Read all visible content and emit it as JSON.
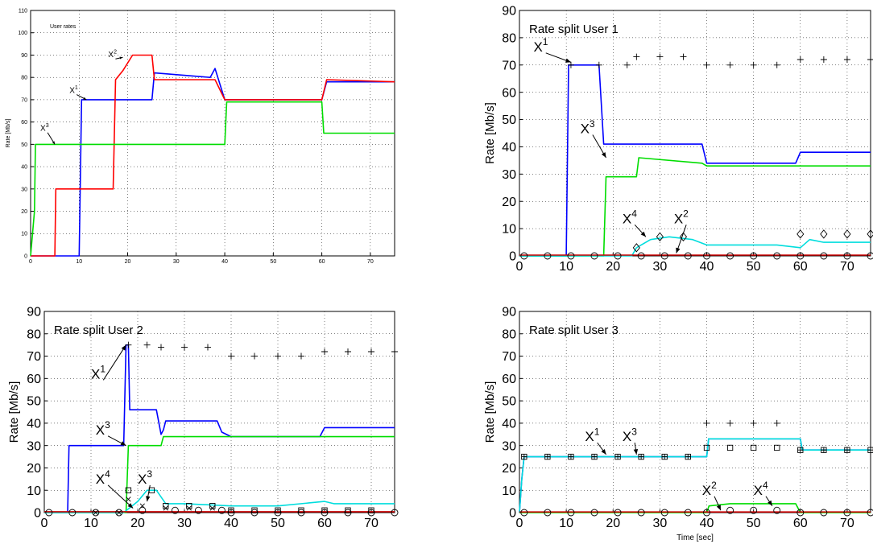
{
  "chart_data": [
    {
      "type": "line",
      "title": "User rates",
      "xlabel": "",
      "ylabel": "Rate [Mb/s]",
      "xlim": [
        0,
        75
      ],
      "ylim": [
        0,
        110
      ],
      "xticks": [
        0,
        10,
        20,
        30,
        40,
        50,
        60,
        70
      ],
      "yticks": [
        0,
        10,
        20,
        30,
        40,
        50,
        60,
        70,
        80,
        90,
        100,
        110
      ],
      "grid": true,
      "series": [
        {
          "name": "X1",
          "color": "#0000ff",
          "x": [
            0,
            10,
            10.5,
            25,
            25.5,
            37,
            38,
            40,
            60,
            61,
            75
          ],
          "y": [
            0,
            0,
            70,
            70,
            82,
            80,
            84,
            70,
            70,
            78,
            78
          ]
        },
        {
          "name": "X2",
          "color": "#ff0000",
          "x": [
            0,
            5,
            5.2,
            17,
            17.5,
            19,
            21,
            25,
            25.5,
            38,
            40,
            60,
            61,
            75
          ],
          "y": [
            0,
            0,
            30,
            30,
            79,
            83,
            90,
            90,
            79,
            79,
            70,
            70,
            79,
            78
          ]
        },
        {
          "name": "X3",
          "color": "#00dd00",
          "x": [
            0,
            0.8,
            1,
            40,
            40.4,
            60,
            60.4,
            75
          ],
          "y": [
            0,
            20,
            50,
            50,
            69,
            69,
            55,
            55
          ]
        }
      ],
      "annotations": [
        {
          "base": "X",
          "sup": "1",
          "x": 8,
          "y": 73,
          "tx": 11.5,
          "ty": 70
        },
        {
          "base": "X",
          "sup": "2",
          "x": 16,
          "y": 89,
          "tx": 19,
          "ty": 89
        },
        {
          "base": "X",
          "sup": "3",
          "x": 2,
          "y": 56,
          "tx": 5,
          "ty": 50
        }
      ]
    },
    {
      "type": "line",
      "title": "Rate split User 1",
      "xlabel": "",
      "ylabel": "Rate [Mb/s]",
      "xlim": [
        0,
        75
      ],
      "ylim": [
        0,
        90
      ],
      "xticks": [
        0,
        10,
        20,
        30,
        40,
        50,
        60,
        70
      ],
      "yticks": [
        0,
        10,
        20,
        30,
        40,
        50,
        60,
        70,
        80,
        90
      ],
      "grid": true,
      "series": [
        {
          "name": "X1",
          "color": "#0000ff",
          "x": [
            0,
            10,
            10.5,
            17,
            18,
            25,
            25.5,
            39,
            40,
            59,
            60,
            75
          ],
          "y": [
            0,
            0,
            70,
            70,
            41,
            41,
            41,
            41,
            34,
            34,
            38,
            38
          ]
        },
        {
          "name": "X3",
          "color": "#00dd00",
          "x": [
            0,
            18,
            18.5,
            25,
            25.5,
            39,
            40,
            59,
            60,
            75
          ],
          "y": [
            0,
            0,
            29,
            29,
            36,
            34,
            33,
            33,
            33,
            33
          ]
        },
        {
          "name": "X4",
          "color": "#00dddd",
          "x": [
            0,
            24,
            25,
            28,
            32,
            37,
            40,
            45,
            50,
            55,
            60,
            62,
            65,
            70,
            75
          ],
          "y": [
            0,
            0,
            3,
            6,
            7,
            6,
            4,
            4,
            4,
            4,
            3,
            6,
            5,
            5,
            5
          ]
        },
        {
          "name": "X2",
          "color": "#cc0000",
          "x": [
            0,
            75
          ],
          "y": [
            0.3,
            0.3
          ]
        }
      ],
      "markers": {
        "plus": {
          "x": [
            11,
            17,
            23,
            25,
            30,
            35,
            40,
            45,
            50,
            55,
            60,
            65,
            70,
            75
          ],
          "y": [
            70,
            70,
            70,
            73,
            73,
            73,
            70,
            70,
            70,
            70,
            72,
            72,
            72,
            72
          ]
        },
        "diamond": {
          "x": [
            25,
            30,
            35,
            60,
            65,
            70,
            75
          ],
          "y": [
            3,
            7,
            7,
            8,
            8,
            8,
            8
          ]
        },
        "circle": {
          "x": [
            1,
            6,
            11,
            16,
            21,
            26,
            31,
            36,
            40,
            45,
            50,
            55,
            60,
            65,
            70,
            75
          ],
          "y": [
            0,
            0,
            0,
            0,
            0,
            0,
            0,
            0,
            0,
            0,
            0,
            0,
            0,
            0,
            0,
            0
          ]
        }
      },
      "annotations": [
        {
          "base": "X",
          "sup": "1",
          "x": 3,
          "y": 75,
          "tx": 11,
          "ty": 71
        },
        {
          "base": "X",
          "sup": "3",
          "x": 13,
          "y": 45,
          "tx": 18.5,
          "ty": 36
        },
        {
          "base": "X",
          "sup": "4",
          "x": 22,
          "y": 12,
          "tx": 27,
          "ty": 7
        },
        {
          "base": "X",
          "sup": "2",
          "x": 33,
          "y": 12,
          "tx": 33.5,
          "ty": 1
        }
      ]
    },
    {
      "type": "line",
      "title": "Rate split User 2",
      "xlabel": "",
      "ylabel": "Rate [Mb/s]",
      "xlim": [
        0,
        75
      ],
      "ylim": [
        0,
        90
      ],
      "xticks": [
        0,
        10,
        20,
        30,
        40,
        50,
        60,
        70
      ],
      "yticks": [
        0,
        10,
        20,
        30,
        40,
        50,
        60,
        70,
        80,
        90
      ],
      "grid": true,
      "series": [
        {
          "name": "X1",
          "color": "#0000ff",
          "x": [
            0,
            5,
            5.3,
            17,
            17.5,
            18,
            18.3,
            24,
            25,
            25.5,
            26,
            37,
            38,
            40,
            59,
            60,
            75
          ],
          "y": [
            0,
            0,
            30,
            30,
            75,
            75,
            46,
            46,
            35,
            37,
            41,
            41,
            36,
            34,
            34,
            38,
            38
          ]
        },
        {
          "name": "X3",
          "color": "#00dd00",
          "x": [
            0,
            17.5,
            18,
            25,
            25.5,
            39,
            40,
            59,
            60,
            75
          ],
          "y": [
            0,
            0,
            30,
            30,
            34,
            34,
            34,
            34,
            34,
            34
          ]
        },
        {
          "name": "X4",
          "color": "#00dddd",
          "x": [
            0,
            17,
            20,
            22,
            24,
            26,
            30,
            40,
            50,
            60,
            62,
            75
          ],
          "y": [
            0,
            0,
            5,
            10,
            10,
            4,
            4,
            3,
            3,
            5,
            4,
            4
          ]
        },
        {
          "name": "X2",
          "color": "#cc0000",
          "x": [
            0,
            75
          ],
          "y": [
            0.4,
            0.4
          ]
        }
      ],
      "markers": {
        "plus": {
          "x": [
            18,
            22,
            25,
            30,
            35,
            40,
            45,
            50,
            55,
            60,
            65,
            70,
            75
          ],
          "y": [
            75,
            75,
            74,
            74,
            74,
            70,
            70,
            70,
            70,
            72,
            72,
            72,
            72
          ]
        },
        "box": {
          "x": [
            18,
            23,
            26,
            31,
            36,
            40,
            45,
            50,
            55,
            60,
            65,
            70
          ],
          "y": [
            10,
            10,
            3,
            3,
            3,
            1,
            1,
            1,
            1,
            1,
            1,
            1
          ]
        },
        "cross": {
          "x": [
            11,
            16,
            18,
            21,
            26,
            31,
            36
          ],
          "y": [
            0,
            0,
            6,
            3,
            2,
            2,
            2
          ]
        },
        "circle": {
          "x": [
            1,
            6,
            11,
            16,
            21,
            28,
            33,
            38,
            40,
            45,
            50,
            55,
            60,
            65,
            70,
            75
          ],
          "y": [
            0,
            0,
            0,
            0,
            1,
            1,
            1,
            1,
            0,
            0,
            0,
            0,
            0,
            0,
            0,
            0
          ]
        }
      },
      "annotations": [
        {
          "base": "X",
          "sup": "1",
          "x": 10,
          "y": 60,
          "tx": 17.5,
          "ty": 75
        },
        {
          "base": "X",
          "sup": "3",
          "x": 11,
          "y": 35,
          "tx": 17.5,
          "ty": 30
        },
        {
          "base": "X",
          "sup": "3",
          "x": 20,
          "y": 13,
          "tx": 22,
          "ty": 5
        },
        {
          "base": "X",
          "sup": "4",
          "x": 11,
          "y": 13,
          "tx": 19,
          "ty": 2
        }
      ]
    },
    {
      "type": "line",
      "title": "Rate split User 3",
      "xlabel": "Time [sec]",
      "ylabel": "Rate [Mb/s]",
      "xlim": [
        0,
        75
      ],
      "ylim": [
        0,
        90
      ],
      "xticks": [
        0,
        10,
        20,
        30,
        40,
        50,
        60,
        70
      ],
      "yticks": [
        0,
        10,
        20,
        30,
        40,
        50,
        60,
        70,
        80,
        90
      ],
      "grid": true,
      "series": [
        {
          "name": "X1",
          "color": "#0000ff",
          "x": [
            0,
            0.5,
            1,
            40,
            40.4,
            60,
            60.4,
            75
          ],
          "y": [
            0,
            15,
            25,
            25,
            33,
            33,
            28,
            28
          ]
        },
        {
          "name": "X3",
          "color": "#00dddd",
          "x": [
            0,
            0.5,
            1,
            40,
            40.4,
            60,
            60.4,
            75
          ],
          "y": [
            0,
            15,
            25,
            25,
            33,
            33,
            28,
            28
          ]
        },
        {
          "name": "X4",
          "color": "#00dd00",
          "x": [
            0,
            40,
            40.5,
            45,
            50,
            55,
            59,
            60,
            75
          ],
          "y": [
            0,
            0,
            3,
            4,
            4,
            4,
            4,
            0,
            0
          ]
        },
        {
          "name": "X2",
          "color": "#cc0000",
          "x": [
            0,
            75
          ],
          "y": [
            0.3,
            0.3
          ]
        }
      ],
      "markers": {
        "plus": {
          "x": [
            40,
            45,
            50,
            55
          ],
          "y": [
            40,
            40,
            40,
            40
          ]
        },
        "box": {
          "x": [
            40,
            45,
            50,
            55
          ],
          "y": [
            29,
            29,
            29,
            29
          ]
        },
        "boxplus": {
          "x": [
            1,
            6,
            11,
            16,
            21,
            26,
            31,
            36,
            60,
            65,
            70,
            75
          ],
          "y": [
            25,
            25,
            25,
            25,
            25,
            25,
            25,
            25,
            28,
            28,
            28,
            28
          ]
        },
        "circle": {
          "x": [
            1,
            6,
            11,
            16,
            21,
            26,
            31,
            36,
            40,
            45,
            50,
            55,
            60,
            65,
            70,
            75
          ],
          "y": [
            0,
            0,
            0,
            0,
            0,
            0,
            0,
            0,
            0,
            1,
            1,
            1,
            0,
            0,
            0,
            0
          ]
        }
      },
      "annotations": [
        {
          "base": "X",
          "sup": "1",
          "x": 14,
          "y": 32,
          "tx": 18.5,
          "ty": 26
        },
        {
          "base": "X",
          "sup": "3",
          "x": 22,
          "y": 32,
          "tx": 25,
          "ty": 26
        },
        {
          "base": "X",
          "sup": "2",
          "x": 39,
          "y": 8,
          "tx": 43,
          "ty": 1
        },
        {
          "base": "X",
          "sup": "4",
          "x": 50,
          "y": 8,
          "tx": 54,
          "ty": 3
        }
      ]
    }
  ]
}
